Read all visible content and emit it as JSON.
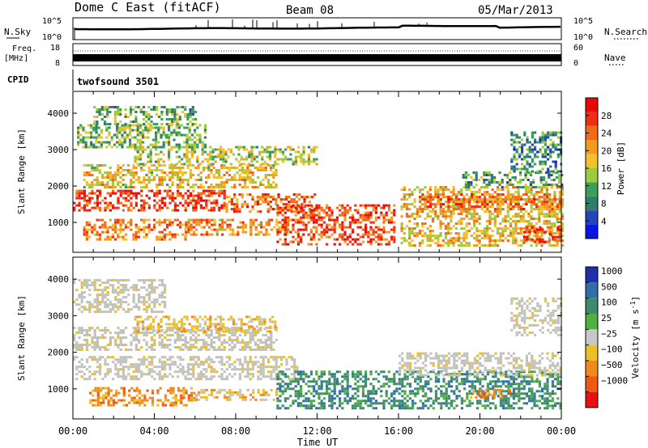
{
  "header": {
    "station": "Dome C East (fitACF)",
    "beam": "Beam 08",
    "date": "05/Mar/2013"
  },
  "panels": {
    "nsky": {
      "label": "N.Sky",
      "ticks": [
        "10^5",
        "10^0"
      ]
    },
    "nsearch": {
      "label": "N.Search",
      "ticks": [
        "10^5",
        "10^0"
      ]
    },
    "freq": {
      "label": "Freq.",
      "unit": "[MHz]",
      "ticks": [
        "18",
        "8"
      ]
    },
    "nave": {
      "label": "Nave",
      "ticks": [
        "60",
        "0"
      ]
    },
    "cpid": {
      "label": "CPID",
      "value": "twofsound 3501"
    }
  },
  "chart_data": [
    {
      "type": "heatmap",
      "name": "power",
      "xlabel": "",
      "ylabel": "Slant Range [km]",
      "xlim_hours": [
        0,
        24
      ],
      "ylim": [
        180,
        4600
      ],
      "y_ticks": [
        1000,
        2000,
        3000,
        4000
      ],
      "colorbar": {
        "label": "Power [dB]",
        "range": [
          0,
          32
        ],
        "ticks": [
          4,
          8,
          12,
          16,
          20,
          24,
          28
        ],
        "colors": [
          "#0a14e6",
          "#2446b8",
          "#2f7d6a",
          "#3a9e5a",
          "#9ccc3c",
          "#f2c12e",
          "#f39a1f",
          "#f06a17",
          "#ef2c14",
          "#e60b0b"
        ]
      },
      "features": [
        {
          "t0": 0.0,
          "t1": 7.5,
          "r0": 1350,
          "r1": 1900,
          "level": 27
        },
        {
          "t0": 7.5,
          "t1": 12.0,
          "r0": 1300,
          "r1": 1800,
          "level": 24
        },
        {
          "t0": 0.5,
          "t1": 5.5,
          "r0": 550,
          "r1": 1100,
          "level": 22
        },
        {
          "t0": 5.5,
          "t1": 10.5,
          "r0": 700,
          "r1": 1100,
          "level": 21
        },
        {
          "t0": 10.0,
          "t1": 15.8,
          "r0": 400,
          "r1": 1500,
          "level": 26
        },
        {
          "t0": 0.5,
          "t1": 10.0,
          "r0": 2000,
          "r1": 2600,
          "level": 18
        },
        {
          "t0": 3.0,
          "t1": 12.0,
          "r0": 2600,
          "r1": 3100,
          "level": 15
        },
        {
          "t0": 0.2,
          "t1": 6.5,
          "r0": 3100,
          "r1": 3700,
          "level": 13
        },
        {
          "t0": 1.0,
          "t1": 6.0,
          "r0": 3700,
          "r1": 4200,
          "level": 12
        },
        {
          "t0": 16.1,
          "t1": 24.0,
          "r0": 400,
          "r1": 2000,
          "level": 19
        },
        {
          "t0": 17.0,
          "t1": 24.0,
          "r0": 1400,
          "r1": 1800,
          "level": 24
        },
        {
          "t0": 19.0,
          "t1": 24.0,
          "r0": 2000,
          "r1": 2400,
          "level": 11
        },
        {
          "t0": 21.5,
          "t1": 24.0,
          "r0": 2400,
          "r1": 3500,
          "level": 9
        },
        {
          "t0": 22.0,
          "t1": 24.0,
          "r0": 500,
          "r1": 900,
          "level": 27
        }
      ]
    },
    {
      "type": "heatmap",
      "name": "velocity",
      "xlabel": "Time UT",
      "ylabel": "Slant Range [km]",
      "xlim_hours": [
        0,
        24
      ],
      "ylim": [
        180,
        4600
      ],
      "y_ticks": [
        1000,
        2000,
        3000,
        4000
      ],
      "x_tick_labels": [
        "00:00",
        "04:00",
        "08:00",
        "12:00",
        "16:00",
        "20:00",
        "00:00"
      ],
      "colorbar": {
        "label": "Velocity [m s^-1]",
        "tick_labels": [
          "1000",
          "500",
          "100",
          "25",
          "−25",
          "−100",
          "−500",
          "−1000"
        ],
        "colors": [
          "#2030a8",
          "#2f6ea6",
          "#3f8a6e",
          "#4fb040",
          "#c7c7c7",
          "#e9c028",
          "#f08a1c",
          "#ee5a15",
          "#e81010"
        ]
      },
      "ground_scatter_color": "#c2c2bd",
      "features": [
        {
          "t0": 0.0,
          "t1": 11.0,
          "r0": 1300,
          "r1": 1900,
          "level": 4
        },
        {
          "t0": 0.0,
          "t1": 10.0,
          "r0": 2100,
          "r1": 2700,
          "level": 4
        },
        {
          "t0": 3.0,
          "t1": 10.0,
          "r0": 2600,
          "r1": 3000,
          "level": 5
        },
        {
          "t0": 0.0,
          "t1": 4.5,
          "r0": 3100,
          "r1": 4000,
          "level": 4
        },
        {
          "t0": 0.8,
          "t1": 6.0,
          "r0": 550,
          "r1": 1050,
          "level": 6
        },
        {
          "t0": 6.0,
          "t1": 10.0,
          "r0": 700,
          "r1": 1000,
          "level": 5
        },
        {
          "t0": 10.0,
          "t1": 16.0,
          "r0": 500,
          "r1": 1500,
          "level": 2
        },
        {
          "t0": 16.0,
          "t1": 24.0,
          "r0": 500,
          "r1": 1500,
          "level": 2
        },
        {
          "t0": 19.5,
          "t1": 21.5,
          "r0": 800,
          "r1": 1000,
          "level": 6
        },
        {
          "t0": 16.0,
          "t1": 24.0,
          "r0": 1400,
          "r1": 2000,
          "level": 4
        },
        {
          "t0": 21.5,
          "t1": 24.0,
          "r0": 2500,
          "r1": 3500,
          "level": 4
        }
      ]
    }
  ]
}
